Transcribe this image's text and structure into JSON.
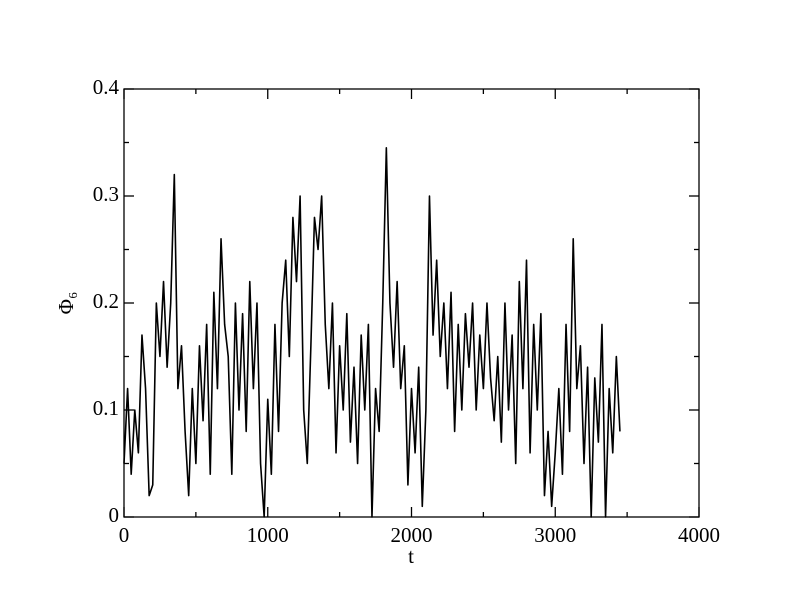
{
  "chart_data": {
    "type": "line",
    "xlabel": "t",
    "ylabel": "Φ₆",
    "xlim": [
      0,
      4000
    ],
    "ylim": [
      0,
      0.4
    ],
    "xticks": [
      0,
      1000,
      2000,
      3000,
      4000
    ],
    "yticks": [
      0,
      0.1,
      0.2,
      0.3,
      0.4
    ],
    "xminorticks": [
      500,
      1500,
      2500,
      3500
    ],
    "yminorticks": [
      0.05,
      0.15,
      0.25,
      0.35
    ],
    "series": [
      {
        "color": "#000000",
        "x": [
          0,
          25,
          50,
          75,
          100,
          125,
          150,
          175,
          200,
          225,
          250,
          275,
          300,
          325,
          350,
          375,
          400,
          425,
          450,
          475,
          500,
          525,
          550,
          575,
          600,
          625,
          650,
          675,
          700,
          725,
          750,
          775,
          800,
          825,
          850,
          875,
          900,
          925,
          950,
          975,
          1000,
          1025,
          1050,
          1075,
          1100,
          1125,
          1150,
          1175,
          1200,
          1225,
          1250,
          1275,
          1300,
          1325,
          1350,
          1375,
          1400,
          1425,
          1450,
          1475,
          1500,
          1525,
          1550,
          1575,
          1600,
          1625,
          1650,
          1675,
          1700,
          1725,
          1750,
          1775,
          1800,
          1825,
          1850,
          1875,
          1900,
          1925,
          1950,
          1975,
          2000,
          2025,
          2050,
          2075,
          2100,
          2125,
          2150,
          2175,
          2200,
          2225,
          2250,
          2275,
          2300,
          2325,
          2350,
          2375,
          2400,
          2425,
          2450,
          2475,
          2500,
          2525,
          2550,
          2575,
          2600,
          2625,
          2650,
          2675,
          2700,
          2725,
          2750,
          2775,
          2800,
          2825,
          2850,
          2875,
          2900,
          2925,
          2950,
          2975,
          3000,
          3025,
          3050,
          3075,
          3100,
          3125,
          3150,
          3175,
          3200,
          3225,
          3250,
          3275,
          3300,
          3325,
          3350,
          3375,
          3400,
          3425,
          3450
        ],
        "values": [
          0.05,
          0.12,
          0.04,
          0.1,
          0.06,
          0.17,
          0.12,
          0.02,
          0.03,
          0.2,
          0.15,
          0.22,
          0.14,
          0.2,
          0.32,
          0.12,
          0.16,
          0.08,
          0.02,
          0.12,
          0.05,
          0.16,
          0.09,
          0.18,
          0.04,
          0.21,
          0.12,
          0.26,
          0.18,
          0.15,
          0.04,
          0.2,
          0.1,
          0.19,
          0.08,
          0.22,
          0.12,
          0.2,
          0.05,
          0.0,
          0.11,
          0.04,
          0.18,
          0.08,
          0.2,
          0.24,
          0.15,
          0.28,
          0.22,
          0.3,
          0.1,
          0.05,
          0.16,
          0.28,
          0.25,
          0.3,
          0.18,
          0.12,
          0.2,
          0.06,
          0.16,
          0.1,
          0.19,
          0.07,
          0.14,
          0.05,
          0.17,
          0.1,
          0.18,
          0.0,
          0.12,
          0.08,
          0.2,
          0.345,
          0.2,
          0.14,
          0.22,
          0.12,
          0.16,
          0.03,
          0.12,
          0.06,
          0.14,
          0.01,
          0.1,
          0.3,
          0.17,
          0.24,
          0.15,
          0.2,
          0.12,
          0.21,
          0.08,
          0.18,
          0.1,
          0.19,
          0.14,
          0.2,
          0.1,
          0.17,
          0.12,
          0.2,
          0.13,
          0.09,
          0.15,
          0.07,
          0.2,
          0.1,
          0.17,
          0.05,
          0.22,
          0.12,
          0.24,
          0.06,
          0.18,
          0.1,
          0.19,
          0.02,
          0.08,
          0.01,
          0.06,
          0.12,
          0.04,
          0.18,
          0.08,
          0.26,
          0.12,
          0.16,
          0.05,
          0.14,
          0.0,
          0.13,
          0.07,
          0.18,
          0.0,
          0.12,
          0.06,
          0.15,
          0.08
        ]
      }
    ]
  }
}
